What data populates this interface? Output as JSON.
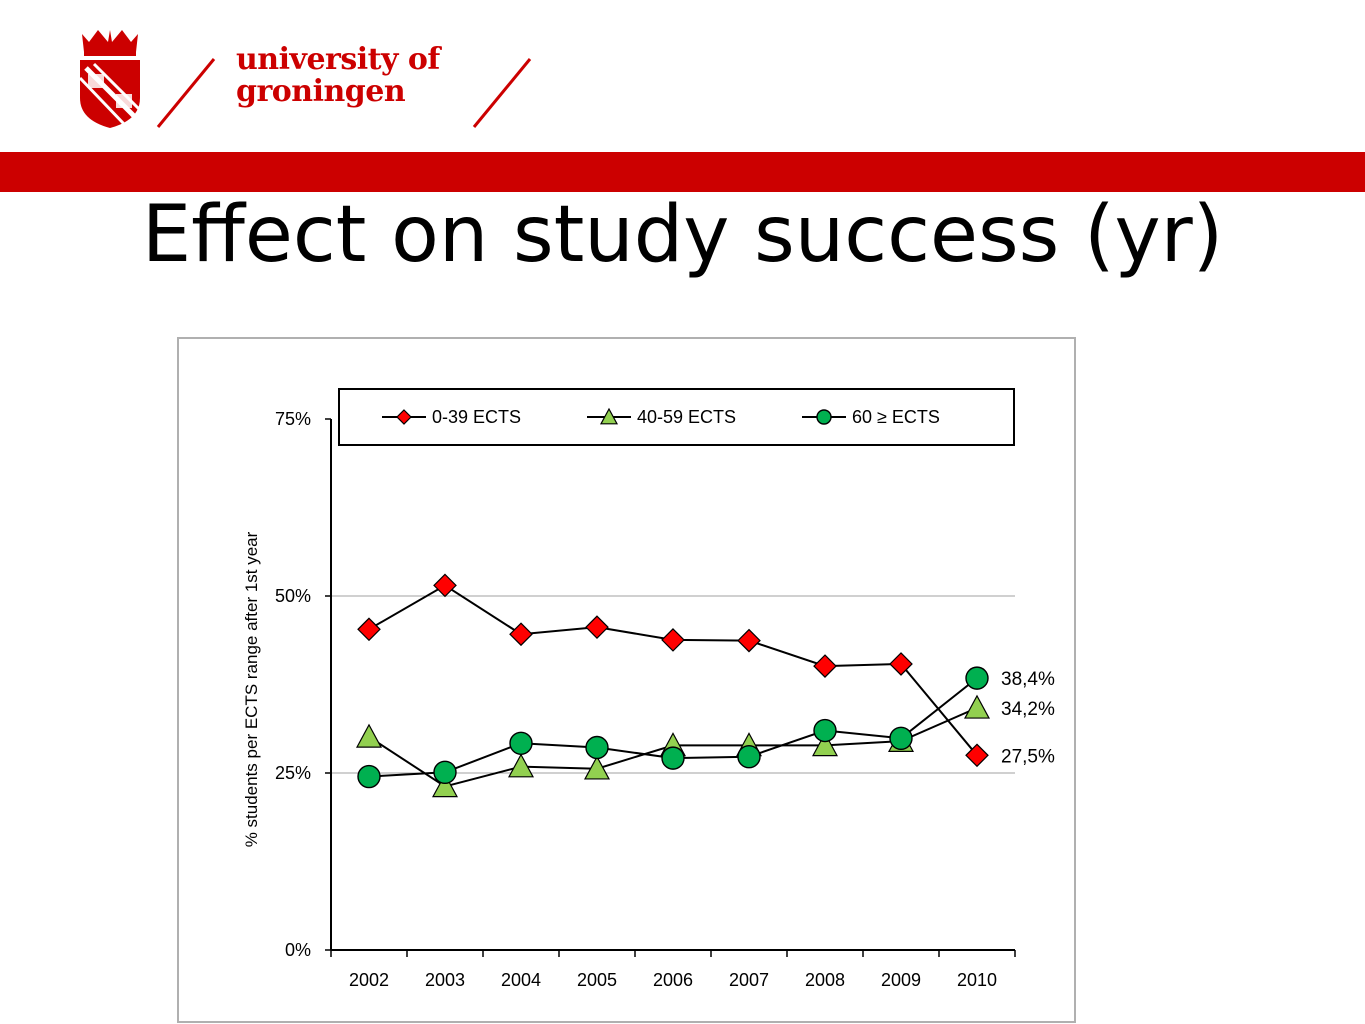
{
  "header": {
    "logo_line1": "university of",
    "logo_line2": "groningen",
    "brand_color": "#cc0000"
  },
  "slide": {
    "title": "Effect on study success (yr)"
  },
  "chart_data": {
    "type": "line",
    "title": "",
    "xlabel": "",
    "ylabel": "% students per  ECTS range after 1st year",
    "categories": [
      "2002",
      "2003",
      "2004",
      "2005",
      "2006",
      "2007",
      "2008",
      "2009",
      "2010"
    ],
    "ylim": [
      0,
      75
    ],
    "yticks": [
      "0%",
      "25%",
      "50%",
      "75%"
    ],
    "ytick_values": [
      0,
      25,
      50,
      75
    ],
    "grid": "horizontal at 25% and 50%",
    "legend_position": "top",
    "series": [
      {
        "name": "0-39 ECTS",
        "marker": "diamond",
        "color": "#ff0000",
        "values": [
          45.3,
          51.5,
          44.6,
          45.6,
          43.8,
          43.7,
          40.1,
          40.4,
          27.5
        ]
      },
      {
        "name": "40-59 ECTS",
        "marker": "triangle",
        "color": "#92d050",
        "values": [
          30.1,
          23.1,
          25.9,
          25.6,
          28.9,
          28.9,
          28.9,
          29.5,
          34.2
        ]
      },
      {
        "name": "60 ≥ ECTS",
        "marker": "circle",
        "color": "#00b050",
        "values": [
          24.5,
          25.1,
          29.2,
          28.6,
          27.1,
          27.3,
          31.0,
          29.9,
          38.4
        ]
      }
    ],
    "end_labels": [
      {
        "series": "60 ≥ ECTS",
        "text": "38,4%"
      },
      {
        "series": "40-59 ECTS",
        "text": "34,2%"
      },
      {
        "series": "0-39 ECTS",
        "text": "27,5%"
      }
    ]
  }
}
